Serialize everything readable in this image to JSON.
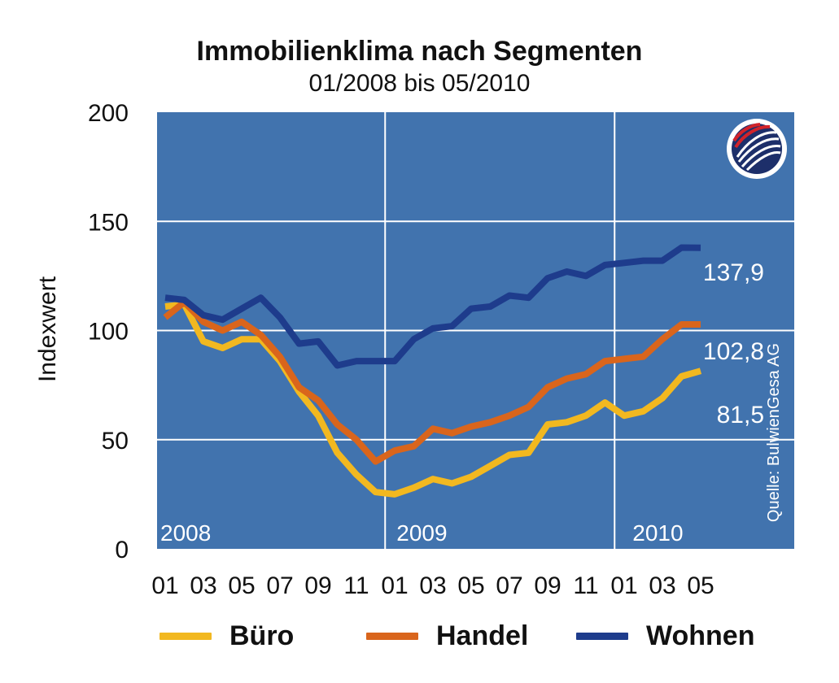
{
  "chart_data": {
    "type": "line",
    "title": "Immobilienklima nach Segmenten",
    "subtitle": "01/2008 bis 05/2010",
    "ylabel": "Indexwert",
    "xlabel": "",
    "ylim": [
      0,
      200
    ],
    "yticks": [
      "0",
      "50",
      "100",
      "150",
      "200"
    ],
    "grid": true,
    "x": [
      "2008-01",
      "2008-02",
      "2008-03",
      "2008-04",
      "2008-05",
      "2008-06",
      "2008-07",
      "2008-08",
      "2008-09",
      "2008-10",
      "2008-11",
      "2008-12",
      "2009-01",
      "2009-02",
      "2009-03",
      "2009-04",
      "2009-05",
      "2009-06",
      "2009-07",
      "2009-08",
      "2009-09",
      "2009-10",
      "2009-11",
      "2009-12",
      "2010-01",
      "2010-02",
      "2010-03",
      "2010-04",
      "2010-05"
    ],
    "xtick_labels": [
      "01",
      "03",
      "05",
      "07",
      "09",
      "11",
      "01",
      "03",
      "05",
      "07",
      "09",
      "11",
      "01",
      "03",
      "05"
    ],
    "year_labels": [
      "2008",
      "2009",
      "2010"
    ],
    "series": [
      {
        "name": "Büro",
        "color": "#f2b820",
        "values": [
          111,
          112,
          95,
          92,
          96,
          96,
          86,
          72,
          61,
          44,
          34,
          26,
          25,
          28,
          32,
          30,
          33,
          38,
          43,
          44,
          57,
          58,
          61,
          67,
          61,
          63,
          69,
          79,
          81.5
        ],
        "end_label": "81,5"
      },
      {
        "name": "Handel",
        "color": "#d9651c",
        "values": [
          106,
          113,
          104,
          100,
          104,
          98,
          88,
          74,
          68,
          57,
          50,
          40,
          45,
          47,
          55,
          53,
          56,
          58,
          61,
          65,
          74,
          78,
          80,
          86,
          87,
          88,
          96,
          102.8,
          102.8
        ],
        "end_label": "102,8"
      },
      {
        "name": "Wohnen",
        "color": "#1e3c8c",
        "values": [
          115,
          114,
          107,
          105,
          110,
          115,
          106,
          94,
          95,
          84,
          86,
          86,
          86,
          96,
          101,
          102,
          110,
          111,
          116,
          115,
          124,
          127,
          125,
          130,
          131,
          132,
          132,
          138,
          137.9
        ],
        "end_label": "137,9"
      }
    ],
    "source": "Quelle: BulwienGesa AG",
    "colors": {
      "plot_background": "#4173ae",
      "grid": "#ffffff"
    }
  }
}
